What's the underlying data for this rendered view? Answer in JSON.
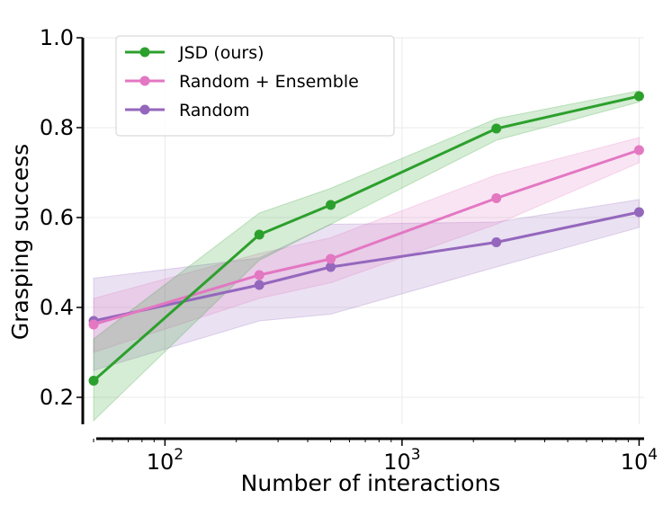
{
  "chart_data": {
    "type": "line",
    "xscale": "log",
    "xlabel": "Number of interactions",
    "ylabel": "Grasping success",
    "xlim": [
      45,
      10500
    ],
    "ylim": [
      0.14,
      1.0
    ],
    "grid": true,
    "legend_position": "top-left",
    "x": [
      50,
      250,
      500,
      2500,
      10000
    ],
    "xticks": [
      {
        "value": 100,
        "base": "10",
        "exp": "2"
      },
      {
        "value": 1000,
        "base": "10",
        "exp": "3"
      },
      {
        "value": 10000,
        "base": "10",
        "exp": "4"
      }
    ],
    "yticks": [
      {
        "value": 0.2,
        "label": "0.2"
      },
      {
        "value": 0.4,
        "label": "0.4"
      },
      {
        "value": 0.6,
        "label": "0.6"
      },
      {
        "value": 0.8,
        "label": "0.8"
      },
      {
        "value": 1.0,
        "label": "1.0"
      }
    ],
    "series": [
      {
        "name": "Random",
        "color": "#9467bd",
        "values": [
          0.37,
          0.45,
          0.49,
          0.545,
          0.612
        ],
        "lower": [
          0.26,
          0.37,
          0.385,
          0.49,
          0.578
        ],
        "upper": [
          0.465,
          0.51,
          0.585,
          0.59,
          0.64
        ]
      },
      {
        "name": "Random + Ensemble",
        "color": "#e377c2",
        "values": [
          0.362,
          0.472,
          0.508,
          0.643,
          0.75
        ],
        "lower": [
          0.3,
          0.42,
          0.455,
          0.585,
          0.722
        ],
        "upper": [
          0.42,
          0.52,
          0.555,
          0.695,
          0.778
        ]
      },
      {
        "name": "JSD (ours)",
        "color": "#2ca02c",
        "values": [
          0.237,
          0.562,
          0.628,
          0.798,
          0.87
        ],
        "lower": [
          0.148,
          0.505,
          0.585,
          0.772,
          0.857
        ],
        "upper": [
          0.33,
          0.61,
          0.665,
          0.82,
          0.882
        ]
      }
    ],
    "legend": [
      {
        "name": "JSD (ours)",
        "color": "#2ca02c"
      },
      {
        "name": "Random + Ensemble",
        "color": "#e377c2"
      },
      {
        "name": "Random",
        "color": "#9467bd"
      }
    ]
  }
}
